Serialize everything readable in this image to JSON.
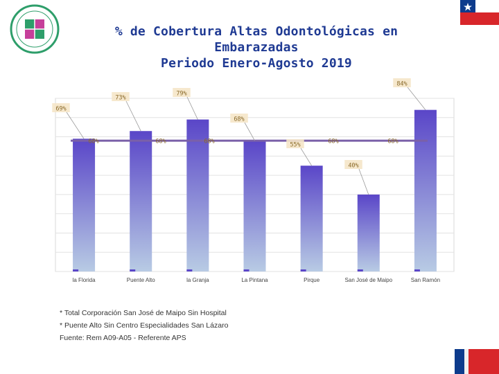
{
  "title_lines": [
    "% de Cobertura Altas Odontológicas en",
    "Embarazadas",
    "Periodo Enero-Agosto 2019"
  ],
  "notes": [
    "* Total  Corporación San José de Maipo Sin Hospital",
    "* Puente Alto Sin Centro Especialidades San Lázaro",
    "Fuente:  Rem A09-A05 - Referente APS"
  ],
  "colors": {
    "bar_top": "#5a46c8",
    "bar_bottom": "#b8cbe4",
    "line": "#7a60a8",
    "label_bg": "#f5e6c8",
    "flag_blue": "#0d3b8c",
    "flag_red": "#d8262a",
    "title": "#1f3a93"
  },
  "chart_data": {
    "type": "bar",
    "categories": [
      "la Florida",
      "Puente Alto",
      "la Granja",
      "La Pintana",
      "Pirque",
      "San José de Maipo",
      "San Ramón"
    ],
    "series": [
      {
        "values": [
          69,
          73,
          79,
          68,
          55,
          40,
          84
        ],
        "labels": [
          "69%",
          "73%",
          "79%",
          "68%",
          "55%",
          "40%",
          "84%"
        ]
      },
      {
        "values": [
          68,
          68,
          68,
          68,
          68,
          68,
          68
        ],
        "labels": [
          "68%",
          "68%",
          "68%",
          "",
          "68%",
          "68%",
          ""
        ]
      }
    ],
    "ylim": [
      0,
      90
    ],
    "grid": true
  }
}
